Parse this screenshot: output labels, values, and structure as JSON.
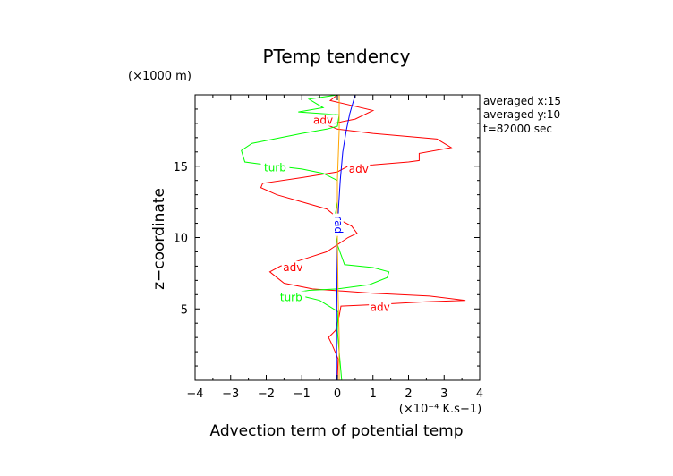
{
  "chart_data": {
    "type": "line",
    "title": "PTemp tendency",
    "xlabel": "Advection term of potential temp",
    "ylabel": "z−coordinate",
    "x_unit": "(×10⁻⁴ K.s−1)",
    "y_unit": "(×1000 m)",
    "xlim": [
      -4,
      4
    ],
    "ylim": [
      0,
      20
    ],
    "x_ticks": [
      -4,
      -3,
      -2,
      -1,
      0,
      1,
      2,
      3,
      4
    ],
    "y_ticks": [
      5,
      10,
      15
    ],
    "info_lines": [
      "averaged  x:15",
      "averaged  y:10",
      "t=82000 sec"
    ],
    "series": [
      {
        "name": "adv",
        "color": "#ff0000",
        "points": [
          [
            0.0,
            0.0
          ],
          [
            0.02,
            1.5
          ],
          [
            -0.15,
            2.5
          ],
          [
            -0.25,
            3.0
          ],
          [
            -0.05,
            3.5
          ],
          [
            0.05,
            4.5
          ],
          [
            0.1,
            5.2
          ],
          [
            1.0,
            5.3
          ],
          [
            2.5,
            5.5
          ],
          [
            3.6,
            5.6
          ],
          [
            2.6,
            5.9
          ],
          [
            1.0,
            6.1
          ],
          [
            -0.7,
            6.4
          ],
          [
            -1.5,
            6.8
          ],
          [
            -1.7,
            7.2
          ],
          [
            -1.9,
            7.6
          ],
          [
            -1.6,
            8.0
          ],
          [
            -1.3,
            8.2
          ],
          [
            -0.8,
            8.6
          ],
          [
            -0.3,
            9.0
          ],
          [
            0.0,
            9.5
          ],
          [
            0.3,
            10.0
          ],
          [
            0.55,
            10.3
          ],
          [
            0.4,
            10.8
          ],
          [
            0.1,
            11.2
          ],
          [
            -0.3,
            12.0
          ],
          [
            -1.0,
            12.5
          ],
          [
            -1.7,
            13.0
          ],
          [
            -2.15,
            13.5
          ],
          [
            -2.1,
            13.8
          ],
          [
            -1.0,
            14.2
          ],
          [
            0.0,
            14.6
          ],
          [
            0.3,
            15.0
          ],
          [
            1.0,
            15.1
          ],
          [
            2.0,
            15.3
          ],
          [
            2.3,
            15.4
          ],
          [
            2.3,
            15.9
          ],
          [
            3.2,
            16.3
          ],
          [
            2.8,
            16.9
          ],
          [
            1.0,
            17.3
          ],
          [
            0.0,
            17.6
          ],
          [
            -0.3,
            17.9
          ],
          [
            0.5,
            18.3
          ],
          [
            1.0,
            18.9
          ],
          [
            0.5,
            19.2
          ],
          [
            -0.2,
            19.6
          ],
          [
            0.0,
            20.0
          ]
        ],
        "labels": [
          {
            "text": "adv",
            "x": -0.4,
            "y": 18.2
          },
          {
            "text": "adv",
            "x": 0.6,
            "y": 14.8
          },
          {
            "text": "adv",
            "x": -1.25,
            "y": 7.9
          },
          {
            "text": "adv",
            "x": 1.2,
            "y": 5.1
          }
        ]
      },
      {
        "name": "turb",
        "color": "#00ff00",
        "points": [
          [
            0.12,
            0.0
          ],
          [
            0.05,
            2.0
          ],
          [
            0.0,
            3.5
          ],
          [
            0.02,
            4.8
          ],
          [
            -0.5,
            5.6
          ],
          [
            -1.0,
            5.9
          ],
          [
            -1.3,
            6.1
          ],
          [
            -0.8,
            6.3
          ],
          [
            0.0,
            6.4
          ],
          [
            0.9,
            6.7
          ],
          [
            1.4,
            7.2
          ],
          [
            1.45,
            7.6
          ],
          [
            1.0,
            7.9
          ],
          [
            0.2,
            8.1
          ],
          [
            0.0,
            9.5
          ],
          [
            -0.1,
            11.0
          ],
          [
            0.0,
            12.5
          ],
          [
            0.0,
            14.0
          ],
          [
            -0.4,
            14.5
          ],
          [
            -1.0,
            14.8
          ],
          [
            -2.0,
            15.1
          ],
          [
            -2.6,
            15.3
          ],
          [
            -2.7,
            16.1
          ],
          [
            -2.4,
            16.6
          ],
          [
            -1.0,
            17.3
          ],
          [
            -0.3,
            17.6
          ],
          [
            0.0,
            17.8
          ],
          [
            0.05,
            18.6
          ],
          [
            -1.1,
            18.8
          ],
          [
            -0.4,
            19.1
          ],
          [
            -0.8,
            19.7
          ],
          [
            0.0,
            20.0
          ]
        ],
        "labels": [
          {
            "text": "turb",
            "x": -1.75,
            "y": 14.9
          },
          {
            "text": "turb",
            "x": -1.3,
            "y": 5.8
          }
        ]
      },
      {
        "name": "rad",
        "color": "#0000ff",
        "points": [
          [
            -0.02,
            0.0
          ],
          [
            -0.02,
            4.0
          ],
          [
            -0.01,
            7.0
          ],
          [
            0.0,
            10.0
          ],
          [
            0.03,
            12.0
          ],
          [
            0.08,
            14.0
          ],
          [
            0.15,
            16.0
          ],
          [
            0.25,
            17.5
          ],
          [
            0.35,
            18.7
          ],
          [
            0.5,
            20.0
          ]
        ],
        "labels": [
          {
            "text": "rad",
            "x": 0.02,
            "y": 10.9
          }
        ]
      },
      {
        "name": "",
        "color": "#ffa500",
        "points": [
          [
            0.05,
            0.0
          ],
          [
            0.05,
            3.0
          ],
          [
            0.02,
            6.0
          ],
          [
            0.0,
            10.0
          ],
          [
            0.0,
            14.0
          ],
          [
            0.05,
            17.5
          ],
          [
            0.05,
            20.0
          ]
        ],
        "labels": []
      }
    ]
  }
}
